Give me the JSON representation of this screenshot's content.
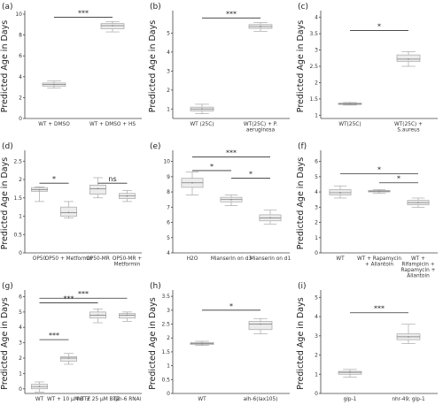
{
  "chart_data": [
    {
      "type": "box",
      "panel": "(a)",
      "ylabel": "Predicted Age in Days",
      "yticks": [
        0,
        2,
        4,
        6,
        8,
        10
      ],
      "ylim": [
        0,
        10
      ],
      "categories": [
        "WT + DMSO",
        "WT + DMSO + HS"
      ],
      "boxes": [
        {
          "min": 2.9,
          "q1": 3.1,
          "median": 3.25,
          "q3": 3.4,
          "max": 3.6
        },
        {
          "min": 8.3,
          "q1": 8.6,
          "median": 8.9,
          "q3": 9.1,
          "max": 9.3
        }
      ],
      "significance": [
        {
          "from": 0,
          "to": 1,
          "label": "***",
          "y": 9.7
        }
      ]
    },
    {
      "type": "box",
      "panel": "(b)",
      "ylabel": "Predicted Age in Days",
      "yticks": [
        1,
        2,
        3,
        4,
        5
      ],
      "ylim": [
        0.5,
        6.0
      ],
      "categories": [
        "WT (25C)",
        "WT(25C) + P. aeruginosa"
      ],
      "boxes": [
        {
          "min": 0.75,
          "q1": 0.9,
          "median": 1.0,
          "q3": 1.1,
          "max": 1.25
        },
        {
          "min": 5.1,
          "q1": 5.25,
          "median": 5.35,
          "q3": 5.45,
          "max": 5.55
        }
      ],
      "significance": [
        {
          "from": 0,
          "to": 1,
          "label": "***",
          "y": 5.8
        }
      ]
    },
    {
      "type": "box",
      "panel": "(c)",
      "ylabel": "Predicted Age in Days",
      "yticks": [
        1.0,
        1.5,
        2.0,
        2.5,
        3.0,
        3.5,
        4.0
      ],
      "ylim": [
        0.9,
        4.1
      ],
      "categories": [
        "WT(25C)",
        "WT(25C) + S.aureus"
      ],
      "boxes": [
        {
          "min": 1.31,
          "q1": 1.33,
          "median": 1.35,
          "q3": 1.37,
          "max": 1.39
        },
        {
          "min": 2.5,
          "q1": 2.65,
          "median": 2.72,
          "q3": 2.85,
          "max": 2.95
        }
      ],
      "significance": [
        {
          "from": 0,
          "to": 1,
          "label": "*",
          "y": 3.6
        }
      ]
    },
    {
      "type": "box",
      "panel": "(d)",
      "ylabel": "Predicted Age in Days",
      "yticks": [
        0.0,
        0.5,
        1.0,
        1.5,
        2.0,
        2.5
      ],
      "ylim": [
        0.0,
        2.7
      ],
      "categories": [
        "OP50",
        "OP50 + Metformin",
        "OP50-MR",
        "OP50-MR + Metformin"
      ],
      "boxes": [
        {
          "min": 1.4,
          "q1": 1.68,
          "median": 1.72,
          "q3": 1.78,
          "max": 1.8
        },
        {
          "min": 0.95,
          "q1": 1.0,
          "median": 1.1,
          "q3": 1.25,
          "max": 1.4
        },
        {
          "min": 1.5,
          "q1": 1.6,
          "median": 1.75,
          "q3": 1.85,
          "max": 2.05
        },
        {
          "min": 1.4,
          "q1": 1.48,
          "median": 1.55,
          "q3": 1.62,
          "max": 1.7
        }
      ],
      "significance": [
        {
          "from": 0,
          "to": 1,
          "label": "*",
          "y": 1.9
        },
        {
          "from": 2,
          "to": 3,
          "label": "ns",
          "y": 1.9
        }
      ]
    },
    {
      "type": "box",
      "panel": "(e)",
      "ylabel": "",
      "yticks": [
        4,
        5,
        6,
        7,
        8,
        9,
        10
      ],
      "ylim": [
        4,
        10.5
      ],
      "categories": [
        "H2O",
        "Mianserin on d3",
        "Mianserin on d1"
      ],
      "boxes": [
        {
          "min": 7.8,
          "q1": 8.3,
          "median": 8.6,
          "q3": 8.9,
          "max": 9.3
        },
        {
          "min": 7.1,
          "q1": 7.35,
          "median": 7.5,
          "q3": 7.65,
          "max": 7.8
        },
        {
          "min": 5.9,
          "q1": 6.1,
          "median": 6.3,
          "q3": 6.5,
          "max": 6.8
        }
      ],
      "significance": [
        {
          "from": 0,
          "to": 2,
          "label": "***",
          "y": 10.3
        },
        {
          "from": 0,
          "to": 1,
          "label": "*",
          "y": 9.4
        },
        {
          "from": 1,
          "to": 2,
          "label": "*",
          "y": 8.9
        }
      ]
    },
    {
      "type": "box",
      "panel": "(f)",
      "ylabel": "Predicted Age in Days",
      "yticks": [
        0,
        1,
        2,
        3,
        4,
        5,
        6
      ],
      "ylim": [
        0,
        6.5
      ],
      "categories": [
        "WT",
        "WT + Rapamycin + Allantoin",
        "WT + Rifampicin + Rapamycin + Allantoin"
      ],
      "boxes": [
        {
          "min": 3.6,
          "q1": 3.8,
          "median": 3.95,
          "q3": 4.15,
          "max": 4.4
        },
        {
          "min": 3.9,
          "q1": 4.0,
          "median": 4.05,
          "q3": 4.1,
          "max": 4.15
        },
        {
          "min": 3.0,
          "q1": 3.15,
          "median": 3.3,
          "q3": 3.45,
          "max": 3.6
        }
      ],
      "significance": [
        {
          "from": 0,
          "to": 2,
          "label": "*",
          "y": 5.2
        },
        {
          "from": 1,
          "to": 2,
          "label": "*",
          "y": 4.6
        }
      ]
    },
    {
      "type": "box",
      "panel": "(g)",
      "ylabel": "Predicted Age in Days",
      "yticks": [
        0,
        1,
        2,
        3,
        4,
        5,
        6
      ],
      "ylim": [
        -0.3,
        6.2
      ],
      "categories": [
        "WT",
        "WT + 10 μM BTZ",
        "WT + 25 μM BTZ",
        "rpn-6 RNAi"
      ],
      "boxes": [
        {
          "min": -0.2,
          "q1": 0.0,
          "median": 0.15,
          "q3": 0.3,
          "max": 0.45
        },
        {
          "min": 1.6,
          "q1": 1.8,
          "median": 2.0,
          "q3": 2.1,
          "max": 2.3
        },
        {
          "min": 4.3,
          "q1": 4.6,
          "median": 4.8,
          "q3": 5.0,
          "max": 5.2
        },
        {
          "min": 4.4,
          "q1": 4.6,
          "median": 4.8,
          "q3": 4.9,
          "max": 5.0
        }
      ],
      "significance": [
        {
          "from": 0,
          "to": 3,
          "label": "***",
          "y": 5.9
        },
        {
          "from": 0,
          "to": 2,
          "label": "***",
          "y": 5.6
        },
        {
          "from": 0,
          "to": 1,
          "label": "***",
          "y": 3.2
        }
      ]
    },
    {
      "type": "box",
      "panel": "(h)",
      "ylabel": "Predicted Age in Days",
      "yticks": [
        0.0,
        0.5,
        1.0,
        1.5,
        2.0,
        2.5,
        3.0,
        3.5
      ],
      "ylim": [
        0.0,
        3.6
      ],
      "categories": [
        "WT",
        "alh-6(lax105)"
      ],
      "boxes": [
        {
          "min": 1.73,
          "q1": 1.76,
          "median": 1.8,
          "q3": 1.84,
          "max": 1.88
        },
        {
          "min": 2.15,
          "q1": 2.3,
          "median": 2.5,
          "q3": 2.6,
          "max": 2.7
        }
      ],
      "significance": [
        {
          "from": 0,
          "to": 1,
          "label": "*",
          "y": 3.0
        }
      ]
    },
    {
      "type": "box",
      "panel": "(i)",
      "ylabel": "Predicted Age in Days",
      "yticks": [
        0,
        1,
        2,
        3,
        4,
        5
      ],
      "ylim": [
        0,
        5.2
      ],
      "categories": [
        "glp-1",
        "nhr-49; glp-1"
      ],
      "boxes": [
        {
          "min": 0.85,
          "q1": 1.0,
          "median": 1.1,
          "q3": 1.15,
          "max": 1.25
        },
        {
          "min": 2.6,
          "q1": 2.8,
          "median": 2.95,
          "q3": 3.1,
          "max": 3.6
        }
      ],
      "significance": [
        {
          "from": 0,
          "to": 1,
          "label": "***",
          "y": 4.2
        }
      ]
    }
  ]
}
